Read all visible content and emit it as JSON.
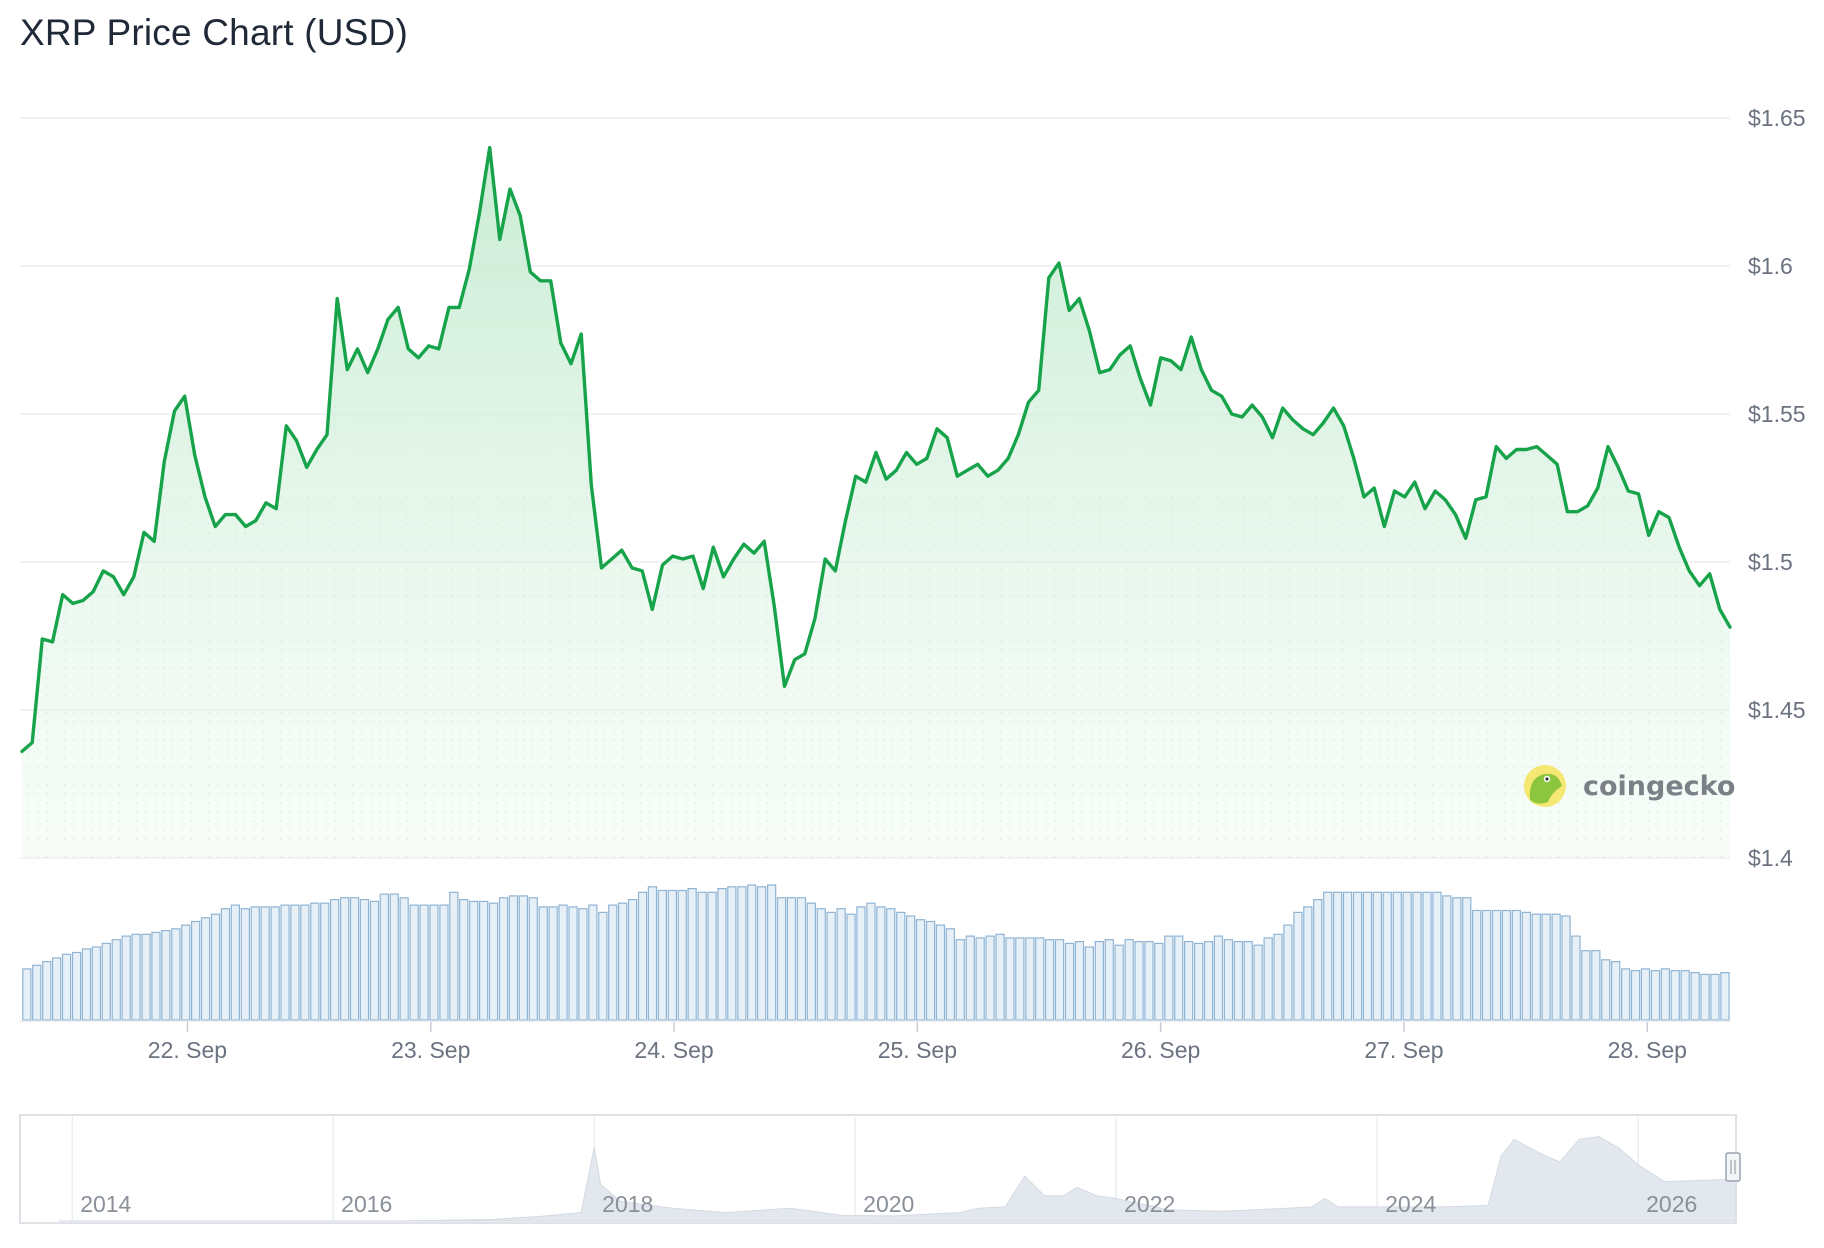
{
  "chart_title": "XRP Price Chart (USD)",
  "watermark": "coingecko",
  "colors": {
    "line": "#16a34a",
    "fill": "#dcf5e3",
    "volume_bar": "#8fb4d4",
    "volume_fill": "#e7eff7",
    "grid": "#e9ebee",
    "navigator_area": "#e3e8ee"
  },
  "chart_data": {
    "type": "line",
    "title": "XRP Price Chart (USD)",
    "xlabel": "",
    "ylabel": "",
    "ylim": [
      1.4,
      1.65
    ],
    "y_ticks": [
      "$1.4",
      "$1.45",
      "$1.5",
      "$1.55",
      "$1.6",
      "$1.65"
    ],
    "x_tick_labels": [
      "22. Sep",
      "23. Sep",
      "24. Sep",
      "25. Sep",
      "26. Sep",
      "27. Sep",
      "28. Sep"
    ],
    "x_start_day": 21.32,
    "x_end_day": 28.34,
    "grid": true,
    "price": [
      1.436,
      1.439,
      1.474,
      1.473,
      1.489,
      1.486,
      1.487,
      1.49,
      1.497,
      1.495,
      1.489,
      1.495,
      1.51,
      1.507,
      1.534,
      1.551,
      1.556,
      1.536,
      1.522,
      1.512,
      1.516,
      1.516,
      1.512,
      1.514,
      1.52,
      1.518,
      1.546,
      1.541,
      1.532,
      1.538,
      1.543,
      1.589,
      1.565,
      1.572,
      1.564,
      1.572,
      1.582,
      1.586,
      1.572,
      1.569,
      1.573,
      1.572,
      1.586,
      1.586,
      1.599,
      1.618,
      1.64,
      1.609,
      1.626,
      1.617,
      1.598,
      1.595,
      1.595,
      1.574,
      1.567,
      1.577,
      1.526,
      1.498,
      1.501,
      1.504,
      1.498,
      1.497,
      1.484,
      1.499,
      1.502,
      1.501,
      1.502,
      1.491,
      1.505,
      1.495,
      1.501,
      1.506,
      1.503,
      1.507,
      1.485,
      1.458,
      1.467,
      1.469,
      1.481,
      1.501,
      1.497,
      1.514,
      1.529,
      1.527,
      1.537,
      1.528,
      1.531,
      1.537,
      1.533,
      1.535,
      1.545,
      1.542,
      1.529,
      1.531,
      1.533,
      1.529,
      1.531,
      1.535,
      1.543,
      1.554,
      1.558,
      1.596,
      1.601,
      1.585,
      1.589,
      1.578,
      1.564,
      1.565,
      1.57,
      1.573,
      1.562,
      1.553,
      1.569,
      1.568,
      1.565,
      1.576,
      1.565,
      1.558,
      1.556,
      1.55,
      1.549,
      1.553,
      1.549,
      1.542,
      1.552,
      1.548,
      1.545,
      1.543,
      1.547,
      1.552,
      1.546,
      1.535,
      1.522,
      1.525,
      1.512,
      1.524,
      1.522,
      1.527,
      1.518,
      1.524,
      1.521,
      1.516,
      1.508,
      1.521,
      1.522,
      1.539,
      1.535,
      1.538,
      1.538,
      1.539,
      1.536,
      1.533,
      1.517,
      1.517,
      1.519,
      1.525,
      1.539,
      1.532,
      1.524,
      1.523,
      1.509,
      1.517,
      1.515,
      1.505,
      1.497,
      1.492,
      1.496,
      1.484,
      1.478
    ],
    "volume": [
      0.28,
      0.3,
      0.32,
      0.34,
      0.36,
      0.37,
      0.39,
      0.4,
      0.42,
      0.44,
      0.46,
      0.47,
      0.47,
      0.48,
      0.49,
      0.5,
      0.52,
      0.54,
      0.56,
      0.58,
      0.61,
      0.63,
      0.61,
      0.62,
      0.62,
      0.62,
      0.63,
      0.63,
      0.63,
      0.64,
      0.64,
      0.66,
      0.67,
      0.67,
      0.66,
      0.65,
      0.69,
      0.69,
      0.67,
      0.63,
      0.63,
      0.63,
      0.63,
      0.7,
      0.66,
      0.65,
      0.65,
      0.64,
      0.67,
      0.68,
      0.68,
      0.67,
      0.62,
      0.62,
      0.63,
      0.62,
      0.61,
      0.63,
      0.59,
      0.63,
      0.64,
      0.66,
      0.7,
      0.73,
      0.71,
      0.71,
      0.71,
      0.72,
      0.7,
      0.7,
      0.72,
      0.73,
      0.73,
      0.74,
      0.73,
      0.74,
      0.67,
      0.67,
      0.67,
      0.64,
      0.61,
      0.59,
      0.61,
      0.58,
      0.62,
      0.64,
      0.62,
      0.61,
      0.59,
      0.57,
      0.55,
      0.54,
      0.52,
      0.5,
      0.44,
      0.46,
      0.45,
      0.46,
      0.47,
      0.45,
      0.45,
      0.45,
      0.45,
      0.44,
      0.44,
      0.42,
      0.43,
      0.4,
      0.43,
      0.44,
      0.41,
      0.44,
      0.43,
      0.43,
      0.42,
      0.46,
      0.46,
      0.43,
      0.42,
      0.43,
      0.46,
      0.44,
      0.43,
      0.43,
      0.41,
      0.45,
      0.47,
      0.52,
      0.59,
      0.62,
      0.66,
      0.7,
      0.7,
      0.7,
      0.7,
      0.7,
      0.7,
      0.7,
      0.7,
      0.7,
      0.7,
      0.7,
      0.7,
      0.68,
      0.67,
      0.67,
      0.6,
      0.6,
      0.6,
      0.6,
      0.6,
      0.59,
      0.58,
      0.58,
      0.58,
      0.57,
      0.46,
      0.38,
      0.38,
      0.33,
      0.32,
      0.28,
      0.27,
      0.28,
      0.27,
      0.28,
      0.27,
      0.27,
      0.26,
      0.25,
      0.25,
      0.26
    ]
  },
  "navigator": {
    "year_labels": [
      "2014",
      "2016",
      "2018",
      "2020",
      "2022",
      "2024",
      "2026"
    ],
    "start_year": 2013.6,
    "end_year": 2026.75,
    "history": [
      [
        2013.9,
        0.002
      ],
      [
        2014.5,
        0.004
      ],
      [
        2015.5,
        0.002
      ],
      [
        2016.5,
        0.002
      ],
      [
        2017.2,
        0.05
      ],
      [
        2017.6,
        0.17
      ],
      [
        2017.9,
        0.3
      ],
      [
        2018.0,
        2.6
      ],
      [
        2018.05,
        1.3
      ],
      [
        2018.2,
        0.7
      ],
      [
        2018.6,
        0.45
      ],
      [
        2019.0,
        0.3
      ],
      [
        2019.5,
        0.45
      ],
      [
        2019.9,
        0.2
      ],
      [
        2020.3,
        0.18
      ],
      [
        2020.8,
        0.3
      ],
      [
        2020.95,
        0.45
      ],
      [
        2021.15,
        0.5
      ],
      [
        2021.3,
        1.6
      ],
      [
        2021.45,
        0.9
      ],
      [
        2021.6,
        0.9
      ],
      [
        2021.7,
        1.2
      ],
      [
        2021.85,
        0.9
      ],
      [
        2022.0,
        0.8
      ],
      [
        2022.4,
        0.4
      ],
      [
        2022.8,
        0.35
      ],
      [
        2023.0,
        0.38
      ],
      [
        2023.5,
        0.5
      ],
      [
        2023.6,
        0.8
      ],
      [
        2023.7,
        0.5
      ],
      [
        2024.5,
        0.5
      ],
      [
        2024.85,
        0.55
      ],
      [
        2024.95,
        2.3
      ],
      [
        2025.05,
        2.9
      ],
      [
        2025.25,
        2.4
      ],
      [
        2025.4,
        2.1
      ],
      [
        2025.55,
        2.9
      ],
      [
        2025.7,
        3.0
      ],
      [
        2025.85,
        2.6
      ],
      [
        2026.0,
        2.0
      ],
      [
        2026.2,
        1.4
      ],
      [
        2026.5,
        1.45
      ],
      [
        2026.75,
        1.48
      ]
    ]
  }
}
